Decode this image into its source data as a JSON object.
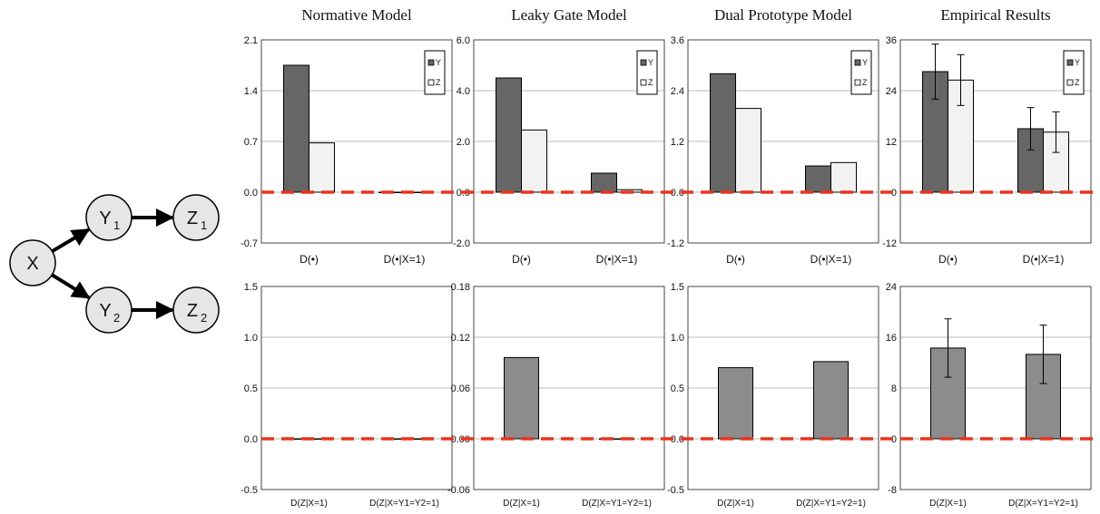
{
  "colors": {
    "y_bar": "#666666",
    "z_bar": "#f2f2f2",
    "single_bar": "#8c8c8c",
    "zero_line": "#e8351f",
    "grid": "#bbbbbb",
    "node_fill": "#e6e6e6"
  },
  "diagram": {
    "nodes": [
      {
        "id": "X",
        "label": "X",
        "sub": ""
      },
      {
        "id": "Y1",
        "label": "Y",
        "sub": "1"
      },
      {
        "id": "Z1",
        "label": "Z",
        "sub": "1"
      },
      {
        "id": "Y2",
        "label": "Y",
        "sub": "2"
      },
      {
        "id": "Z2",
        "label": "Z",
        "sub": "2"
      }
    ],
    "edges": [
      [
        "X",
        "Y1"
      ],
      [
        "Y1",
        "Z1"
      ],
      [
        "X",
        "Y2"
      ],
      [
        "Y2",
        "Z2"
      ]
    ]
  },
  "chart_data": [
    {
      "type": "bar",
      "column_title": "Normative Model",
      "categories": [
        "D(•)",
        "D(•|X=1)"
      ],
      "series": [
        {
          "name": "Y",
          "values": [
            1.75,
            0.0
          ]
        },
        {
          "name": "Z",
          "values": [
            0.68,
            0.0
          ]
        }
      ],
      "yticks": [
        "2.1",
        "1.4",
        "0.7",
        "0.0",
        "-0.7"
      ],
      "ylim": [
        -0.7,
        2.1
      ],
      "legend": "top-right",
      "grid": true
    },
    {
      "type": "bar",
      "column_title": "Leaky Gate Model",
      "categories": [
        "D(•)",
        "D(•|X=1)"
      ],
      "series": [
        {
          "name": "Y",
          "values": [
            4.5,
            0.75
          ]
        },
        {
          "name": "Z",
          "values": [
            2.45,
            0.1
          ]
        }
      ],
      "yticks": [
        "6.0",
        "4.0",
        "2.0",
        "0.0",
        "-2.0"
      ],
      "ylim": [
        -2.0,
        6.0
      ],
      "legend": "top-right",
      "grid": true
    },
    {
      "type": "bar",
      "column_title": "Dual Prototype Model",
      "categories": [
        "D(•)",
        "D(•|X=1)"
      ],
      "series": [
        {
          "name": "Y",
          "values": [
            2.8,
            0.62
          ]
        },
        {
          "name": "Z",
          "values": [
            1.98,
            0.7
          ]
        }
      ],
      "yticks": [
        "3.6",
        "2.4",
        "1.2",
        "0.0",
        "-1.2"
      ],
      "ylim": [
        -1.2,
        3.6
      ],
      "legend": "top-right",
      "grid": true
    },
    {
      "type": "bar",
      "column_title": "Empirical Results",
      "categories": [
        "D(•)",
        "D(•|X=1)"
      ],
      "series": [
        {
          "name": "Y",
          "values": [
            28.5,
            15.0
          ],
          "error": [
            6.5,
            5.0
          ]
        },
        {
          "name": "Z",
          "values": [
            26.5,
            14.2
          ],
          "error": [
            6.0,
            4.8
          ]
        }
      ],
      "yticks": [
        "36",
        "24",
        "12",
        "0",
        "-12"
      ],
      "ylim": [
        -12,
        36
      ],
      "legend": "top-right",
      "grid": true
    },
    {
      "type": "bar",
      "column_title": "",
      "categories": [
        "D(Z|X=1)",
        "D(Z|X=Y1=Y2=1)"
      ],
      "series": [
        {
          "name": "",
          "values": [
            0.0,
            0.0
          ]
        }
      ],
      "yticks": [
        "1.5",
        "1.0",
        "0.5",
        "0.0",
        "-0.5"
      ],
      "ylim": [
        -0.5,
        1.5
      ],
      "grid": true
    },
    {
      "type": "bar",
      "column_title": "",
      "categories": [
        "D(Z|X=1)",
        "D(Z|X=Y1=Y2=1)"
      ],
      "series": [
        {
          "name": "",
          "values": [
            0.096,
            0.0
          ]
        }
      ],
      "yticks": [
        "0.18",
        "0.12",
        "0.06",
        "0.00",
        "-0.06"
      ],
      "ylim": [
        -0.06,
        0.18
      ],
      "grid": true
    },
    {
      "type": "bar",
      "column_title": "",
      "categories": [
        "D(Z|X=1)",
        "D(Z|X=Y1=Y2=1)"
      ],
      "series": [
        {
          "name": "",
          "values": [
            0.7,
            0.76
          ]
        }
      ],
      "yticks": [
        "1.5",
        "1.0",
        "0.5",
        "0.0",
        "-0.5"
      ],
      "ylim": [
        -0.5,
        1.5
      ],
      "grid": true
    },
    {
      "type": "bar",
      "column_title": "",
      "categories": [
        "D(Z|X=1)",
        "D(Z|X=Y1=Y2=1)"
      ],
      "series": [
        {
          "name": "",
          "values": [
            14.3,
            13.3
          ],
          "error": [
            4.6,
            4.6
          ]
        }
      ],
      "yticks": [
        "24",
        "16",
        "8",
        "0",
        "-8"
      ],
      "ylim": [
        -8,
        24
      ],
      "grid": true
    }
  ]
}
